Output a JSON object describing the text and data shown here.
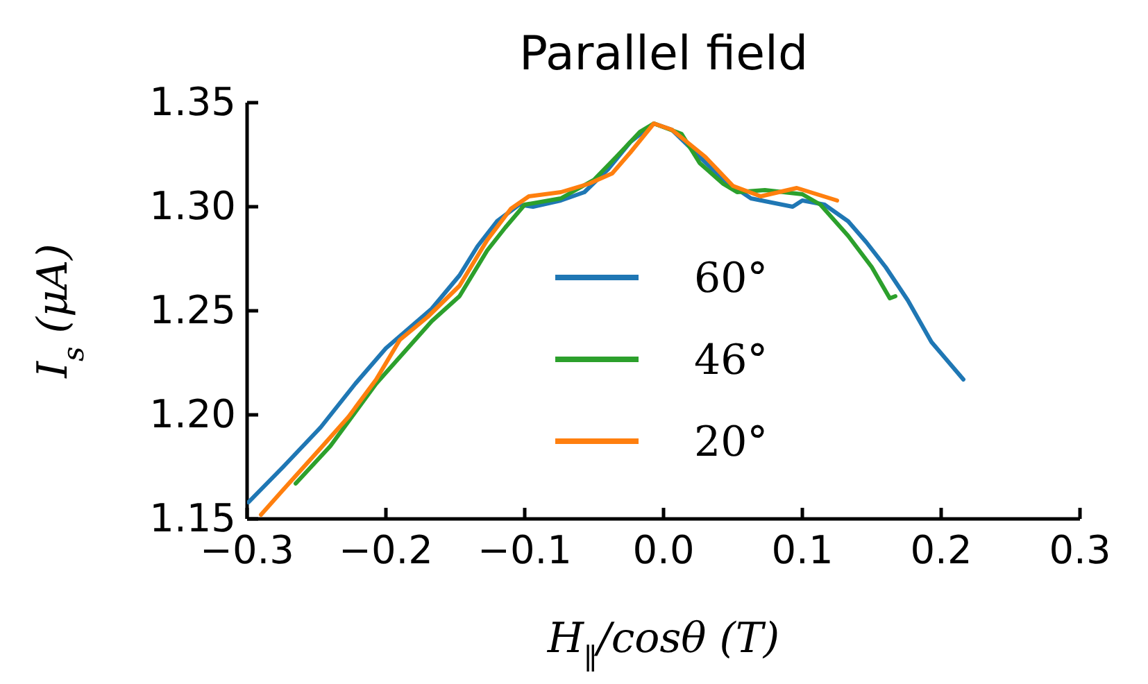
{
  "chart_data": {
    "type": "line",
    "title": "Parallel field",
    "xlabel": "H$_{∥}$/cosθ (T)",
    "ylabel": "I$_{s}$ (μA)",
    "xlim": [
      -0.3,
      0.3
    ],
    "ylim": [
      1.15,
      1.35
    ],
    "xticks": [
      {
        "value": -0.3,
        "label": "−0.3"
      },
      {
        "value": -0.2,
        "label": "−0.2"
      },
      {
        "value": -0.1,
        "label": "−0.1"
      },
      {
        "value": 0,
        "label": "0.0"
      },
      {
        "value": 0.1,
        "label": "0.1"
      },
      {
        "value": 0.2,
        "label": "0.2"
      },
      {
        "value": 0.3,
        "label": "0.3"
      }
    ],
    "yticks": [
      {
        "value": 1.15,
        "label": "1.15"
      },
      {
        "value": 1.2,
        "label": "1.20"
      },
      {
        "value": 1.25,
        "label": "1.25"
      },
      {
        "value": 1.3,
        "label": "1.30"
      },
      {
        "value": 1.35,
        "label": "1.35"
      }
    ],
    "grid": false,
    "legend": "center",
    "line_style": "solid",
    "marker": "none",
    "series": [
      {
        "name": "60°",
        "color": "#1f77b4",
        "x": [
          -0.299,
          -0.274,
          -0.247,
          -0.222,
          -0.2,
          -0.167,
          -0.147,
          -0.134,
          -0.12,
          -0.104,
          -0.094,
          -0.074,
          -0.057,
          -0.04,
          -0.024,
          -0.007,
          0.006,
          0.026,
          0.043,
          0.063,
          0.093,
          0.1,
          0.116,
          0.133,
          0.146,
          0.16,
          0.176,
          0.193,
          0.216
        ],
        "values": [
          1.158,
          1.175,
          1.194,
          1.215,
          1.232,
          1.251,
          1.267,
          1.281,
          1.293,
          1.301,
          1.3,
          1.303,
          1.307,
          1.318,
          1.331,
          1.34,
          1.337,
          1.324,
          1.313,
          1.304,
          1.3,
          1.303,
          1.301,
          1.293,
          1.283,
          1.271,
          1.255,
          1.235,
          1.217
        ]
      },
      {
        "name": "46°",
        "color": "#2ca02c",
        "x": [
          -0.265,
          -0.24,
          -0.207,
          -0.187,
          -0.167,
          -0.147,
          -0.127,
          -0.114,
          -0.1,
          -0.074,
          -0.05,
          -0.034,
          -0.017,
          -0.007,
          0.013,
          0.026,
          0.043,
          0.053,
          0.073,
          0.1,
          0.113,
          0.133,
          0.15,
          0.163,
          0.167
        ],
        "values": [
          1.167,
          1.185,
          1.215,
          1.23,
          1.245,
          1.257,
          1.279,
          1.29,
          1.301,
          1.304,
          1.313,
          1.324,
          1.336,
          1.34,
          1.335,
          1.321,
          1.311,
          1.307,
          1.308,
          1.306,
          1.301,
          1.286,
          1.271,
          1.256,
          1.257
        ]
      },
      {
        "name": "20°",
        "color": "#ff7f0e",
        "x": [
          -0.29,
          -0.274,
          -0.247,
          -0.227,
          -0.207,
          -0.19,
          -0.17,
          -0.147,
          -0.127,
          -0.11,
          -0.097,
          -0.074,
          -0.054,
          -0.037,
          -0.024,
          -0.007,
          0.006,
          0.03,
          0.05,
          0.07,
          0.096,
          0.125
        ],
        "values": [
          1.152,
          1.164,
          1.184,
          1.199,
          1.217,
          1.236,
          1.247,
          1.262,
          1.284,
          1.299,
          1.305,
          1.307,
          1.311,
          1.316,
          1.326,
          1.34,
          1.337,
          1.324,
          1.31,
          1.305,
          1.309,
          1.303
        ]
      }
    ]
  }
}
